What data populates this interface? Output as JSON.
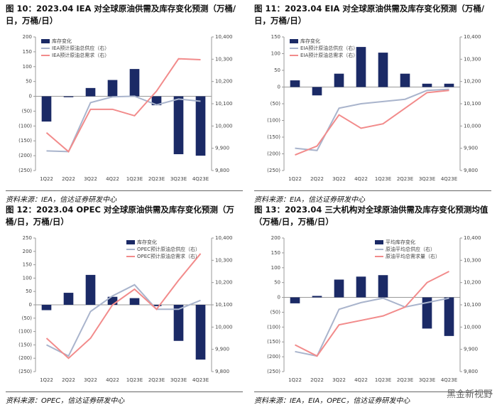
{
  "watermark": "黑金新视野",
  "chart_data": [
    {
      "type": "combo",
      "title": "图 10：2023.04 IEA 对全球原油供需及库存变化预测（万桶/日，万桶/日）",
      "source": "资料来源：IEA，信达证券研发中心",
      "legend": "upper left",
      "categories": [
        "1Q22",
        "2Q22",
        "3Q22",
        "4Q22",
        "1Q23E",
        "2Q23E",
        "3Q23E",
        "4Q23E"
      ],
      "series": [
        {
          "name": "库存变化",
          "type": "bar",
          "color": "#1b2a66",
          "values": [
            -85,
            -3,
            28,
            55,
            92,
            -30,
            -195,
            -200
          ]
        },
        {
          "name": "IEA预计原油总供应（右）",
          "type": "line",
          "axis": "y2",
          "color": "#a9b4cc",
          "values": [
            9888,
            9885,
            10105,
            10131,
            10134,
            10095,
            10121,
            10111
          ]
        },
        {
          "name": "IEA预计原油总需求（右）",
          "type": "line",
          "axis": "y2",
          "color": "#f28b8b",
          "values": [
            9970,
            9885,
            10075,
            10075,
            10046,
            10157,
            10302,
            10298
          ]
        }
      ],
      "ylim": [
        -250,
        200
      ],
      "yticks": [
        200,
        150,
        100,
        50,
        0,
        {
          "value": -50,
          "label": "(50)"
        },
        {
          "value": -100,
          "label": "(100)"
        },
        {
          "value": -150,
          "label": "(150)"
        },
        {
          "value": -200,
          "label": "(200)"
        },
        {
          "value": -250,
          "label": "(250)"
        }
      ],
      "y2lim": [
        9800,
        10400
      ],
      "y2ticks": [
        {
          "value": 10400,
          "label": "10,400"
        },
        {
          "value": 10300,
          "label": "10,300"
        },
        {
          "value": 10200,
          "label": "10,200"
        },
        {
          "value": 10100,
          "label": "10,100"
        },
        {
          "value": 10000,
          "label": "10,000"
        },
        {
          "value": 9900,
          "label": "9,900"
        },
        {
          "value": 9800,
          "label": "9,800"
        }
      ]
    },
    {
      "type": "combo",
      "title": "图 11：2023.04 EIA 对全球原油供需及库存变化预测（万桶/日，万桶/日）",
      "source": "资料来源：EIA，信达证券研发中心",
      "legend": "upper left",
      "categories": [
        "1Q22",
        "2Q22",
        "3Q22",
        "4Q22",
        "1Q23E",
        "2Q23E",
        "3Q23E",
        "4Q23E"
      ],
      "series": [
        {
          "name": "库存变化",
          "type": "bar",
          "color": "#1b2a66",
          "values": [
            20,
            -25,
            40,
            120,
            103,
            40,
            10,
            10
          ]
        },
        {
          "name": "EIA预计原油总供应（右）",
          "type": "line",
          "axis": "y2",
          "color": "#a9b4cc",
          "values": [
            9900,
            9890,
            10080,
            10100,
            10110,
            10120,
            10160,
            10165
          ]
        },
        {
          "name": "EIA预计原油总需求（右）",
          "type": "line",
          "axis": "y2",
          "color": "#f28b8b",
          "values": [
            9870,
            9910,
            10050,
            9990,
            10010,
            10080,
            10150,
            10160
          ]
        }
      ],
      "ylim": [
        -250,
        150
      ],
      "yticks": [
        150,
        100,
        50,
        0,
        {
          "value": -50,
          "label": "(50)"
        },
        {
          "value": -100,
          "label": "(100)"
        },
        {
          "value": -150,
          "label": "(150)"
        },
        {
          "value": -200,
          "label": "(200)"
        },
        {
          "value": -250,
          "label": "(250)"
        }
      ],
      "y2lim": [
        9800,
        10400
      ],
      "y2ticks": [
        {
          "value": 10400,
          "label": "10,400"
        },
        {
          "value": 10300,
          "label": "10,300"
        },
        {
          "value": 10200,
          "label": "10,200"
        },
        {
          "value": 10100,
          "label": "10,100"
        },
        {
          "value": 10000,
          "label": "10,000"
        },
        {
          "value": 9900,
          "label": "9,900"
        },
        {
          "value": 9800,
          "label": "9,800"
        }
      ]
    },
    {
      "type": "combo",
      "title": "图 12：2023.04 OPEC 对全球原油供需及库存变化预测（万桶/日，万桶/日）",
      "source": "资料来源：OPEC，信达证券研发中心",
      "legend": "upper right",
      "categories": [
        "1Q22",
        "2Q22",
        "3Q22",
        "4Q22",
        "1Q23E",
        "2Q23E",
        "3Q23E",
        "4Q23E"
      ],
      "series": [
        {
          "name": "库存变化",
          "type": "bar",
          "color": "#1b2a66",
          "values": [
            -20,
            45,
            112,
            30,
            25,
            -5,
            -135,
            -205
          ]
        },
        {
          "name": "OPEC预计原油总供应（右）",
          "type": "line",
          "axis": "y2",
          "color": "#a9b4cc",
          "values": [
            9920,
            9870,
            10070,
            10140,
            10190,
            10080,
            10080,
            10120
          ]
        },
        {
          "name": "OPEC预计原油总需求（右）",
          "type": "line",
          "axis": "y2",
          "color": "#f28b8b",
          "values": [
            9950,
            9860,
            9950,
            10100,
            10170,
            10080,
            10210,
            10330
          ]
        }
      ],
      "ylim": [
        -250,
        250
      ],
      "yticks": [
        250,
        200,
        150,
        100,
        50,
        0,
        {
          "value": -50,
          "label": "(50)"
        },
        {
          "value": -100,
          "label": "(100)"
        },
        {
          "value": -150,
          "label": "(150)"
        },
        {
          "value": -200,
          "label": "(200)"
        },
        {
          "value": -250,
          "label": "(250)"
        }
      ],
      "y2lim": [
        9800,
        10400
      ],
      "y2ticks": [
        {
          "value": 10400,
          "label": "10,400"
        },
        {
          "value": 10300,
          "label": "10,300"
        },
        {
          "value": 10200,
          "label": "10,200"
        },
        {
          "value": 10100,
          "label": "10,100"
        },
        {
          "value": 10000,
          "label": "10,000"
        },
        {
          "value": 9900,
          "label": "9,900"
        },
        {
          "value": 9800,
          "label": "9,800"
        }
      ]
    },
    {
      "type": "combo",
      "title": "图 13：2023.04 三大机构对全球原油供需及库存变化预测均值（万桶/日，万桶/日）",
      "source": "资料来源：IEA，EIA，OPEC，信达证券研发中心",
      "legend": "upper right",
      "categories": [
        "1Q22",
        "2Q22",
        "3Q22",
        "4Q22",
        "1Q23E",
        "2Q23E",
        "3Q23E",
        "4Q23E"
      ],
      "series": [
        {
          "name": "平均库存变化",
          "type": "bar",
          "color": "#1b2a66",
          "values": [
            -20,
            5,
            60,
            70,
            75,
            0,
            -105,
            -130
          ]
        },
        {
          "name": "原油平均总供应（右）",
          "type": "line",
          "axis": "y2",
          "color": "#a9b4cc",
          "values": [
            9890,
            9870,
            10080,
            10110,
            10130,
            10090,
            10110,
            10130
          ]
        },
        {
          "name": "原油平均总需求量（右）",
          "type": "line",
          "axis": "y2",
          "color": "#f28b8b",
          "values": [
            9920,
            9870,
            10010,
            10030,
            10050,
            10090,
            10200,
            10250
          ]
        }
      ],
      "ylim": [
        -250,
        200
      ],
      "yticks": [
        200,
        150,
        100,
        50,
        0,
        {
          "value": -50,
          "label": "(50)"
        },
        {
          "value": -100,
          "label": "(100)"
        },
        {
          "value": -150,
          "label": "(150)"
        },
        {
          "value": -200,
          "label": "(200)"
        },
        {
          "value": -250,
          "label": "(250)"
        }
      ],
      "y2lim": [
        9800,
        10400
      ],
      "y2ticks": [
        {
          "value": 10400,
          "label": "10,400"
        },
        {
          "value": 10300,
          "label": "10,300"
        },
        {
          "value": 10200,
          "label": "10,200"
        },
        {
          "value": 10100,
          "label": "10,100"
        },
        {
          "value": 10000,
          "label": "10,000"
        },
        {
          "value": 9900,
          "label": "9,900"
        },
        {
          "value": 9800,
          "label": "9,800"
        }
      ]
    }
  ]
}
